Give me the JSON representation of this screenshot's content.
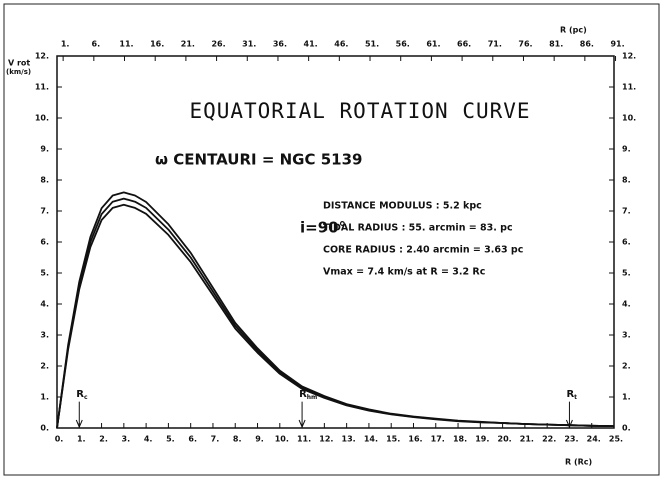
{
  "chart_data": {
    "type": "line",
    "title": "EQUATORIAL ROTATION CURVE",
    "subtitle": "ω CENTAURI = NGC 5139",
    "ylabel": [
      "V rot",
      "(km/s)"
    ],
    "xlabel": "R (Rc)",
    "x2label": "R (pc)",
    "annotations": {
      "inclination": "i=90°",
      "info": [
        "DISTANCE MODULUS : 5.2 kpc",
        "TIDAL RADIUS : 55. arcmin = 83. pc",
        "CORE  RADIUS : 2.40 arcmin = 3.63 pc",
        "Vmax = 7.4 km/s at R = 3.2 Rc"
      ],
      "markers": [
        {
          "label": "R",
          "sub": "c",
          "x": 1
        },
        {
          "label": "R",
          "sub": "hm",
          "x": 11
        },
        {
          "label": "R",
          "sub": "t",
          "x": 23
        }
      ]
    },
    "x": [
      0,
      0.5,
      1,
      1.5,
      2,
      2.5,
      3,
      3.5,
      4,
      5,
      6,
      7,
      8,
      9,
      10,
      11,
      12,
      13,
      14,
      15,
      16,
      17,
      18,
      19,
      20,
      21,
      22,
      23,
      24,
      25
    ],
    "series": [
      {
        "color": "#111111",
        "values": [
          0,
          2.67,
          4.72,
          6.16,
          7.09,
          7.5,
          7.6,
          7.5,
          7.29,
          6.57,
          5.65,
          4.52,
          3.39,
          2.57,
          1.85,
          1.34,
          1.03,
          0.77,
          0.6,
          0.46,
          0.37,
          0.3,
          0.24,
          0.2,
          0.16,
          0.13,
          0.11,
          0.09,
          0.07,
          0.06
        ]
      },
      {
        "color": "#111111",
        "values": [
          0,
          2.6,
          4.6,
          6.0,
          6.9,
          7.3,
          7.4,
          7.3,
          7.1,
          6.4,
          5.5,
          4.4,
          3.3,
          2.5,
          1.8,
          1.3,
          1.0,
          0.75,
          0.58,
          0.45,
          0.36,
          0.29,
          0.23,
          0.19,
          0.16,
          0.13,
          0.11,
          0.09,
          0.07,
          0.06
        ]
      },
      {
        "color": "#111111",
        "values": [
          0,
          2.53,
          4.48,
          5.84,
          6.71,
          7.1,
          7.2,
          7.1,
          6.91,
          6.23,
          5.35,
          4.28,
          3.21,
          2.43,
          1.75,
          1.26,
          0.97,
          0.73,
          0.56,
          0.44,
          0.35,
          0.28,
          0.22,
          0.18,
          0.16,
          0.13,
          0.11,
          0.09,
          0.07,
          0.06
        ]
      }
    ],
    "xlim": [
      0,
      25
    ],
    "ylim": [
      0,
      12
    ],
    "x2lim": [
      0,
      90.75
    ],
    "xticks": [
      {
        "value": 0,
        "label": "0."
      },
      {
        "value": 1,
        "label": "1."
      },
      {
        "value": 2,
        "label": "2."
      },
      {
        "value": 3,
        "label": "3."
      },
      {
        "value": 4,
        "label": "4."
      },
      {
        "value": 5,
        "label": "5."
      },
      {
        "value": 6,
        "label": "6."
      },
      {
        "value": 7,
        "label": "7."
      },
      {
        "value": 8,
        "label": "8."
      },
      {
        "value": 9,
        "label": "9."
      },
      {
        "value": 10,
        "label": "10."
      },
      {
        "value": 11,
        "label": "11."
      },
      {
        "value": 12,
        "label": "12."
      },
      {
        "value": 13,
        "label": "13."
      },
      {
        "value": 14,
        "label": "14."
      },
      {
        "value": 15,
        "label": "15."
      },
      {
        "value": 16,
        "label": "16."
      },
      {
        "value": 17,
        "label": "17."
      },
      {
        "value": 18,
        "label": "18."
      },
      {
        "value": 19,
        "label": "19."
      },
      {
        "value": 20,
        "label": "20."
      },
      {
        "value": 21,
        "label": "21."
      },
      {
        "value": 22,
        "label": "22."
      },
      {
        "value": 23,
        "label": "23."
      },
      {
        "value": 24,
        "label": "24."
      },
      {
        "value": 25,
        "label": "25."
      }
    ],
    "yticks": [
      {
        "value": 0,
        "label": "0."
      },
      {
        "value": 1,
        "label": "1."
      },
      {
        "value": 2,
        "label": "2."
      },
      {
        "value": 3,
        "label": "3."
      },
      {
        "value": 4,
        "label": "4."
      },
      {
        "value": 5,
        "label": "5."
      },
      {
        "value": 6,
        "label": "6."
      },
      {
        "value": 7,
        "label": "7."
      },
      {
        "value": 8,
        "label": "8."
      },
      {
        "value": 9,
        "label": "9."
      },
      {
        "value": 10,
        "label": "10."
      },
      {
        "value": 11,
        "label": "11."
      },
      {
        "value": 12,
        "label": "12."
      }
    ],
    "x2ticks": [
      {
        "value": 1,
        "label": "1."
      },
      {
        "value": 6,
        "label": "6."
      },
      {
        "value": 11,
        "label": "11."
      },
      {
        "value": 16,
        "label": "16."
      },
      {
        "value": 21,
        "label": "21."
      },
      {
        "value": 26,
        "label": "26."
      },
      {
        "value": 31,
        "label": "31."
      },
      {
        "value": 36,
        "label": "36."
      },
      {
        "value": 41,
        "label": "41."
      },
      {
        "value": 46,
        "label": "46."
      },
      {
        "value": 51,
        "label": "51."
      },
      {
        "value": 56,
        "label": "56."
      },
      {
        "value": 61,
        "label": "61."
      },
      {
        "value": 66,
        "label": "66."
      },
      {
        "value": 71,
        "label": "71."
      },
      {
        "value": 76,
        "label": "76."
      },
      {
        "value": 81,
        "label": "81."
      },
      {
        "value": 86,
        "label": "86."
      },
      {
        "value": 91,
        "label": "91."
      }
    ],
    "grid": false
  }
}
